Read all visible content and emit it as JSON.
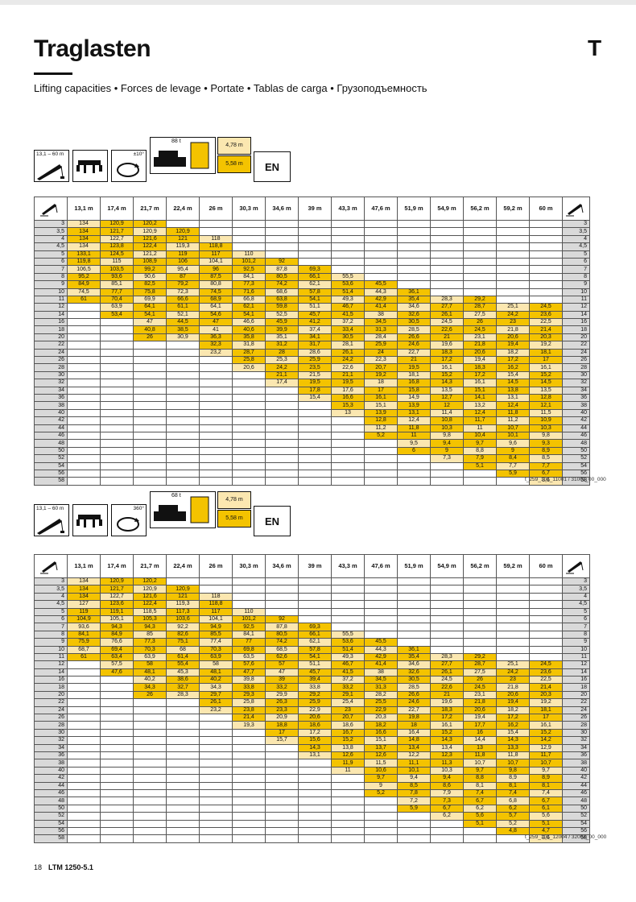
{
  "title": "Traglasten",
  "tab_letter": "T",
  "subtitle": "Lifting capacities • Forces de levage • Portate • Tablas de carga • Грузоподъемность",
  "columns": [
    "13,1 m",
    "17,4 m",
    "21,7 m",
    "22,4 m",
    "26 m",
    "30,3 m",
    "34,6 m",
    "39 m",
    "43,3 m",
    "47,6 m",
    "51,9 m",
    "54,9 m",
    "56,2 m",
    "59,2 m",
    "60 m"
  ],
  "radii": [
    "3",
    "3,5",
    "4",
    "4,5",
    "5",
    "6",
    "7",
    "8",
    "9",
    "10",
    "11",
    "12",
    "14",
    "16",
    "18",
    "20",
    "22",
    "24",
    "26",
    "28",
    "30",
    "32",
    "34",
    "36",
    "38",
    "40",
    "42",
    "44",
    "46",
    "48",
    "50",
    "52",
    "54",
    "56",
    "58"
  ],
  "colors": {
    "yellow": "#f4c300",
    "light": "#fbe7b0",
    "grey": "#d9d9d9"
  },
  "tables": [
    {
      "boom_range": "13,1 – 60 m",
      "counterweight": "88 t",
      "slewing": "±10°",
      "outrigger_a": "4,78 m",
      "outrigger_b": "5,58 m",
      "lang": "EN",
      "code": "t_259_101_11001 / 31001_00_000",
      "rows": [
        [
          "134",
          "120,9",
          "120,2",
          "",
          "",
          "",
          "",
          "",
          "",
          "",
          "",
          "",
          "",
          "",
          ""
        ],
        [
          "134",
          "121,7",
          "120,9",
          "120,9",
          "",
          "",
          "",
          "",
          "",
          "",
          "",
          "",
          "",
          "",
          ""
        ],
        [
          "134",
          "122,7",
          "121,6",
          "121",
          "118",
          "",
          "",
          "",
          "",
          "",
          "",
          "",
          "",
          "",
          ""
        ],
        [
          "134",
          "123,8",
          "122,4",
          "119,3",
          "118,8",
          "",
          "",
          "",
          "",
          "",
          "",
          "",
          "",
          "",
          ""
        ],
        [
          "133,1",
          "124,5",
          "121,2",
          "119",
          "117",
          "110",
          "",
          "",
          "",
          "",
          "",
          "",
          "",
          "",
          ""
        ],
        [
          "119,8",
          "115",
          "108,9",
          "106",
          "104,1",
          "101,2",
          "92",
          "",
          "",
          "",
          "",
          "",
          "",
          "",
          ""
        ],
        [
          "106,5",
          "103,5",
          "99,2",
          "95,4",
          "96",
          "92,5",
          "87,8",
          "69,3",
          "",
          "",
          "",
          "",
          "",
          "",
          ""
        ],
        [
          "95,2",
          "93,6",
          "90,6",
          "87",
          "87,5",
          "84,1",
          "80,5",
          "66,1",
          "55,5",
          "",
          "",
          "",
          "",
          "",
          ""
        ],
        [
          "84,9",
          "85,1",
          "82,5",
          "79,2",
          "80,8",
          "77,3",
          "74,2",
          "62,1",
          "53,6",
          "45,5",
          "",
          "",
          "",
          "",
          ""
        ],
        [
          "74,5",
          "77,7",
          "75,8",
          "72,3",
          "74,5",
          "71,6",
          "68,6",
          "57,8",
          "51,4",
          "44,3",
          "36,1",
          "",
          "",
          "",
          ""
        ],
        [
          "61",
          "70,4",
          "69,9",
          "66,6",
          "68,9",
          "66,8",
          "63,8",
          "54,1",
          "49,3",
          "42,9",
          "35,4",
          "28,3",
          "29,2",
          "",
          ""
        ],
        [
          "",
          "63,9",
          "64,1",
          "61,1",
          "64,1",
          "62,1",
          "59,8",
          "51,1",
          "46,7",
          "41,4",
          "34,6",
          "27,7",
          "28,7",
          "25,1",
          "24,5"
        ],
        [
          "",
          "53,4",
          "54,1",
          "52,1",
          "54,6",
          "54,1",
          "52,5",
          "45,7",
          "41,5",
          "38",
          "32,6",
          "26,1",
          "27,5",
          "24,2",
          "23,6"
        ],
        [
          "",
          "",
          "47",
          "44,5",
          "47",
          "46,6",
          "45,9",
          "41,2",
          "37,2",
          "34,5",
          "30,5",
          "24,5",
          "26",
          "23",
          "22,5"
        ],
        [
          "",
          "",
          "40,8",
          "38,5",
          "41",
          "40,6",
          "39,9",
          "37,4",
          "33,4",
          "31,3",
          "28,5",
          "22,6",
          "24,5",
          "21,8",
          "21,4"
        ],
        [
          "",
          "",
          "26",
          "30,9",
          "36,3",
          "35,8",
          "35,1",
          "34,1",
          "30,5",
          "28,4",
          "26,6",
          "21",
          "23,1",
          "20,6",
          "20,3"
        ],
        [
          "",
          "",
          "",
          "",
          "32,3",
          "31,8",
          "31,2",
          "31,7",
          "28,1",
          "25,9",
          "24,6",
          "19,6",
          "21,8",
          "19,4",
          "19,2"
        ],
        [
          "",
          "",
          "",
          "",
          "23,2",
          "28,7",
          "28",
          "28,6",
          "26,1",
          "24",
          "22,7",
          "18,3",
          "20,6",
          "18,2",
          "18,1"
        ],
        [
          "",
          "",
          "",
          "",
          "",
          "25,8",
          "25,3",
          "25,9",
          "24,2",
          "22,3",
          "21",
          "17,2",
          "19,4",
          "17,2",
          "17"
        ],
        [
          "",
          "",
          "",
          "",
          "",
          "20,6",
          "24,2",
          "23,5",
          "22,6",
          "20,7",
          "19,5",
          "16,1",
          "18,3",
          "16,2",
          "16,1"
        ],
        [
          "",
          "",
          "",
          "",
          "",
          "",
          "21,1",
          "21,5",
          "21,1",
          "19,2",
          "18,1",
          "15,2",
          "17,2",
          "15,4",
          "15,2"
        ],
        [
          "",
          "",
          "",
          "",
          "",
          "",
          "17,4",
          "19,5",
          "19,5",
          "18",
          "16,8",
          "14,3",
          "16,1",
          "14,5",
          "14,5"
        ],
        [
          "",
          "",
          "",
          "",
          "",
          "",
          "",
          "17,8",
          "17,6",
          "17",
          "15,8",
          "13,5",
          "15,1",
          "13,8",
          "13,5"
        ],
        [
          "",
          "",
          "",
          "",
          "",
          "",
          "",
          "15,4",
          "16,6",
          "16,1",
          "14,9",
          "12,7",
          "14,1",
          "13,1",
          "12,8"
        ],
        [
          "",
          "",
          "",
          "",
          "",
          "",
          "",
          "",
          "15,3",
          "15,1",
          "13,9",
          "12",
          "13,2",
          "12,4",
          "12,1"
        ],
        [
          "",
          "",
          "",
          "",
          "",
          "",
          "",
          "",
          "13",
          "13,9",
          "13,1",
          "11,4",
          "12,4",
          "11,8",
          "11,5"
        ],
        [
          "",
          "",
          "",
          "",
          "",
          "",
          "",
          "",
          "",
          "12,8",
          "12,4",
          "10,8",
          "11,7",
          "11,2",
          "10,9"
        ],
        [
          "",
          "",
          "",
          "",
          "",
          "",
          "",
          "",
          "",
          "11,2",
          "11,8",
          "10,3",
          "11",
          "10,7",
          "10,3"
        ],
        [
          "",
          "",
          "",
          "",
          "",
          "",
          "",
          "",
          "",
          "5,2",
          "11",
          "9,8",
          "10,4",
          "10,1",
          "9,8"
        ],
        [
          "",
          "",
          "",
          "",
          "",
          "",
          "",
          "",
          "",
          "",
          "9,5",
          "9,4",
          "9,7",
          "9,6",
          "9,3"
        ],
        [
          "",
          "",
          "",
          "",
          "",
          "",
          "",
          "",
          "",
          "",
          "6",
          "9",
          "8,8",
          "9",
          "8,9"
        ],
        [
          "",
          "",
          "",
          "",
          "",
          "",
          "",
          "",
          "",
          "",
          "",
          "7,3",
          "7,9",
          "8,4",
          "8,5"
        ],
        [
          "",
          "",
          "",
          "",
          "",
          "",
          "",
          "",
          "",
          "",
          "",
          "",
          "5,1",
          "7,7",
          "7,7"
        ],
        [
          "",
          "",
          "",
          "",
          "",
          "",
          "",
          "",
          "",
          "",
          "",
          "",
          "",
          "5,9",
          "6,7"
        ],
        [
          "",
          "",
          "",
          "",
          "",
          "",
          "",
          "",
          "",
          "",
          "",
          "",
          "",
          "",
          "3,6"
        ]
      ]
    },
    {
      "boom_range": "13,1 – 60 m",
      "counterweight": "68 t",
      "slewing": "360°",
      "outrigger_a": "4,78 m",
      "outrigger_b": "5,58 m",
      "lang": "EN",
      "code": "t_259_101_12004 / 32004_00_000",
      "rows": [
        [
          "134",
          "120,9",
          "120,2",
          "",
          "",
          "",
          "",
          "",
          "",
          "",
          "",
          "",
          "",
          "",
          ""
        ],
        [
          "134",
          "121,7",
          "120,9",
          "120,9",
          "",
          "",
          "",
          "",
          "",
          "",
          "",
          "",
          "",
          "",
          ""
        ],
        [
          "134",
          "122,7",
          "121,6",
          "121",
          "118",
          "",
          "",
          "",
          "",
          "",
          "",
          "",
          "",
          "",
          ""
        ],
        [
          "127",
          "123,6",
          "122,4",
          "119,3",
          "118,8",
          "",
          "",
          "",
          "",
          "",
          "",
          "",
          "",
          "",
          ""
        ],
        [
          "119",
          "119,1",
          "118,5",
          "117,3",
          "117",
          "110",
          "",
          "",
          "",
          "",
          "",
          "",
          "",
          "",
          ""
        ],
        [
          "104,9",
          "105,1",
          "105,3",
          "103,6",
          "104,1",
          "101,2",
          "92",
          "",
          "",
          "",
          "",
          "",
          "",
          "",
          ""
        ],
        [
          "93,6",
          "94,3",
          "94,3",
          "92,2",
          "94,9",
          "92,5",
          "87,8",
          "69,3",
          "",
          "",
          "",
          "",
          "",
          "",
          ""
        ],
        [
          "84,1",
          "84,9",
          "85",
          "82,6",
          "85,5",
          "84,1",
          "80,5",
          "66,1",
          "55,5",
          "",
          "",
          "",
          "",
          "",
          ""
        ],
        [
          "75,9",
          "76,6",
          "77,3",
          "75,1",
          "77,4",
          "77",
          "74,2",
          "62,1",
          "53,6",
          "45,5",
          "",
          "",
          "",
          "",
          ""
        ],
        [
          "68,7",
          "69,4",
          "70,3",
          "68",
          "70,3",
          "69,8",
          "68,5",
          "57,8",
          "51,4",
          "44,3",
          "36,1",
          "",
          "",
          "",
          ""
        ],
        [
          "61",
          "63,4",
          "63,9",
          "61,4",
          "63,9",
          "63,5",
          "62,6",
          "54,1",
          "49,3",
          "42,9",
          "35,4",
          "28,3",
          "29,2",
          "",
          ""
        ],
        [
          "",
          "57,5",
          "58",
          "55,4",
          "58",
          "57,6",
          "57",
          "51,1",
          "46,7",
          "41,4",
          "34,6",
          "27,7",
          "28,7",
          "25,1",
          "24,5"
        ],
        [
          "",
          "47,6",
          "48,1",
          "45,3",
          "48,1",
          "47,7",
          "47",
          "45,7",
          "41,5",
          "38",
          "32,6",
          "26,1",
          "27,5",
          "24,2",
          "23,6"
        ],
        [
          "",
          "",
          "40,2",
          "38,6",
          "40,2",
          "39,8",
          "39",
          "39,4",
          "37,2",
          "34,5",
          "30,5",
          "24,5",
          "26",
          "23",
          "22,5"
        ],
        [
          "",
          "",
          "34,3",
          "32,7",
          "34,3",
          "33,8",
          "33,2",
          "33,8",
          "33,2",
          "31,3",
          "28,5",
          "22,6",
          "24,5",
          "21,8",
          "21,4"
        ],
        [
          "",
          "",
          "26",
          "28,3",
          "29,7",
          "29,3",
          "29,9",
          "29,2",
          "29,1",
          "28,2",
          "26,6",
          "21",
          "23,1",
          "20,6",
          "20,3"
        ],
        [
          "",
          "",
          "",
          "",
          "26,1",
          "25,8",
          "26,3",
          "25,9",
          "25,4",
          "25,5",
          "24,6",
          "19,6",
          "21,8",
          "19,4",
          "19,2"
        ],
        [
          "",
          "",
          "",
          "",
          "23,2",
          "23,8",
          "23,3",
          "22,9",
          "23",
          "22,9",
          "22,7",
          "18,3",
          "20,6",
          "18,2",
          "18,1"
        ],
        [
          "",
          "",
          "",
          "",
          "",
          "21,4",
          "20,9",
          "20,6",
          "20,7",
          "20,3",
          "19,8",
          "17,2",
          "19,4",
          "17,2",
          "17"
        ],
        [
          "",
          "",
          "",
          "",
          "",
          "19,3",
          "18,8",
          "18,6",
          "18,6",
          "18,2",
          "18",
          "16,1",
          "17,7",
          "16,2",
          "16,1"
        ],
        [
          "",
          "",
          "",
          "",
          "",
          "",
          "17",
          "17,2",
          "16,7",
          "16,6",
          "16,4",
          "15,2",
          "16",
          "15,4",
          "15,2"
        ],
        [
          "",
          "",
          "",
          "",
          "",
          "",
          "15,7",
          "15,6",
          "15,2",
          "15,1",
          "14,8",
          "14,3",
          "14,4",
          "14,3",
          "14,2"
        ],
        [
          "",
          "",
          "",
          "",
          "",
          "",
          "",
          "14,3",
          "13,8",
          "13,7",
          "13,4",
          "13,4",
          "13",
          "13,3",
          "12,9"
        ],
        [
          "",
          "",
          "",
          "",
          "",
          "",
          "",
          "13,1",
          "12,6",
          "12,6",
          "12,2",
          "12,3",
          "11,8",
          "11,8",
          "11,7"
        ],
        [
          "",
          "",
          "",
          "",
          "",
          "",
          "",
          "",
          "11,9",
          "11,5",
          "11,1",
          "11,3",
          "10,7",
          "10,7",
          "10,7"
        ],
        [
          "",
          "",
          "",
          "",
          "",
          "",
          "",
          "",
          "11",
          "10,6",
          "10,1",
          "10,3",
          "9,7",
          "9,8",
          "9,7"
        ],
        [
          "",
          "",
          "",
          "",
          "",
          "",
          "",
          "",
          "",
          "9,7",
          "9,4",
          "9,4",
          "8,8",
          "8,9",
          "8,9"
        ],
        [
          "",
          "",
          "",
          "",
          "",
          "",
          "",
          "",
          "",
          "9",
          "8,5",
          "8,6",
          "8,1",
          "8,1",
          "8,1"
        ],
        [
          "",
          "",
          "",
          "",
          "",
          "",
          "",
          "",
          "",
          "5,2",
          "7,8",
          "7,9",
          "7,4",
          "7,4",
          "7,4"
        ],
        [
          "",
          "",
          "",
          "",
          "",
          "",
          "",
          "",
          "",
          "",
          "7,2",
          "7,3",
          "6,7",
          "6,8",
          "6,7"
        ],
        [
          "",
          "",
          "",
          "",
          "",
          "",
          "",
          "",
          "",
          "",
          "5,9",
          "6,7",
          "6,2",
          "6,2",
          "6,1"
        ],
        [
          "",
          "",
          "",
          "",
          "",
          "",
          "",
          "",
          "",
          "",
          "",
          "6,2",
          "5,6",
          "5,7",
          "5,6"
        ],
        [
          "",
          "",
          "",
          "",
          "",
          "",
          "",
          "",
          "",
          "",
          "",
          "",
          "5,1",
          "5,2",
          "5,1"
        ],
        [
          "",
          "",
          "",
          "",
          "",
          "",
          "",
          "",
          "",
          "",
          "",
          "",
          "",
          "4,8",
          "4,7"
        ],
        [
          "",
          "",
          "",
          "",
          "",
          "",
          "",
          "",
          "",
          "",
          "",
          "",
          "",
          "",
          "3,6"
        ]
      ]
    }
  ],
  "footer": {
    "page": "18",
    "model": "LTM 1250-5.1"
  }
}
